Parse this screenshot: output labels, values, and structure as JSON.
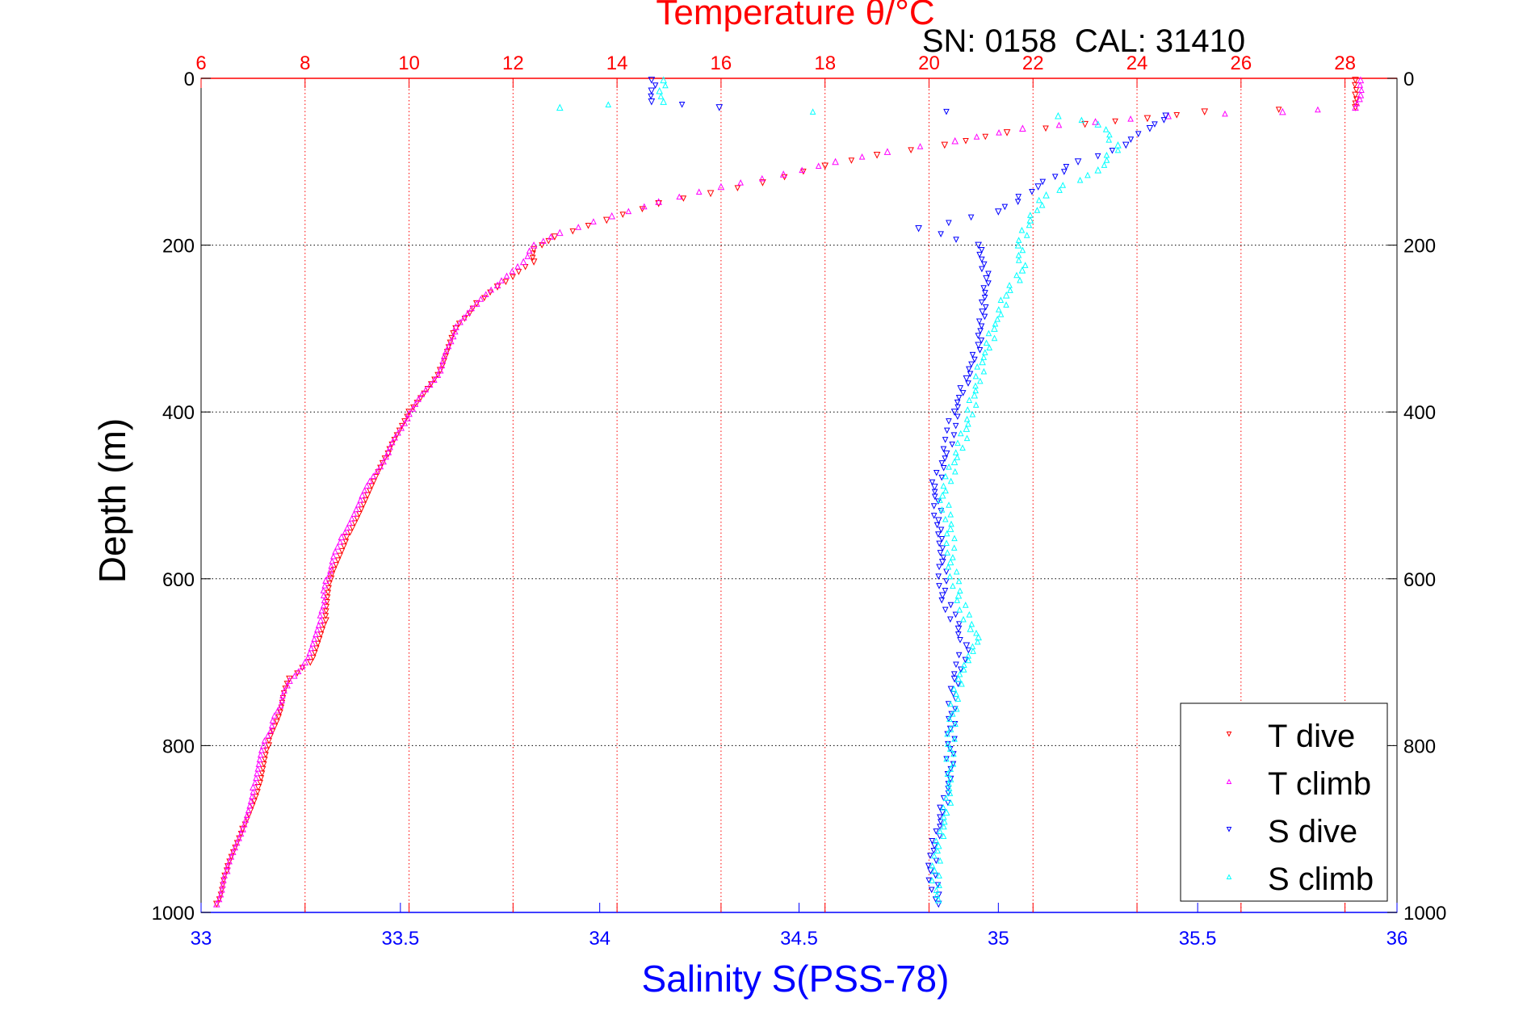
{
  "chart_data": {
    "type": "scatter",
    "title": "Temperature θ/°C",
    "subtitle": "SN: 0158  CAL: 31410",
    "ylabel": "Depth (m)",
    "xlabel": "Salinity S(PSS-78)",
    "ylim": [
      0,
      1000
    ],
    "y_reversed": true,
    "x_top": {
      "label": "Temperature θ/°C",
      "range": [
        6,
        29
      ],
      "ticks": [
        "6",
        "8",
        "10",
        "12",
        "14",
        "16",
        "18",
        "20",
        "22",
        "24",
        "26",
        "28"
      ],
      "color": "#ff0000"
    },
    "x_bottom": {
      "label": "Salinity S(PSS-78)",
      "range": [
        33,
        36
      ],
      "ticks": [
        "33",
        "33.5",
        "34",
        "34.5",
        "35",
        "35.5",
        "36"
      ],
      "color": "#0000ff"
    },
    "y_ticks": [
      "0",
      "200",
      "400",
      "600",
      "800",
      "1000"
    ],
    "grid": true,
    "legend": {
      "placement": "bottom-right",
      "entries": [
        "T dive",
        "T climb",
        "S dive",
        "S climb"
      ]
    },
    "series": [
      {
        "name": "T dive",
        "axis": "temperature",
        "color": "#ff0000",
        "marker": "triangle-down",
        "points": [
          [
            28.2,
            2
          ],
          [
            28.2,
            20
          ],
          [
            28.2,
            35
          ],
          [
            25.3,
            40
          ],
          [
            24.2,
            48
          ],
          [
            23,
            55
          ],
          [
            21.5,
            65
          ],
          [
            20.3,
            80
          ],
          [
            19.0,
            92
          ],
          [
            18.0,
            105
          ],
          [
            16.8,
            125
          ],
          [
            15.8,
            138
          ],
          [
            14.8,
            150
          ],
          [
            13.8,
            170
          ],
          [
            12.8,
            190
          ],
          [
            12.4,
            205
          ],
          [
            12.4,
            220
          ],
          [
            11.7,
            250
          ],
          [
            11.3,
            270
          ],
          [
            10.9,
            300
          ],
          [
            10.6,
            350
          ],
          [
            10.0,
            400
          ],
          [
            9.6,
            450
          ],
          [
            9.2,
            500
          ],
          [
            8.8,
            550
          ],
          [
            8.5,
            600
          ],
          [
            8.4,
            650
          ],
          [
            8.1,
            700
          ],
          [
            7.7,
            720
          ],
          [
            7.3,
            800
          ],
          [
            7.1,
            850
          ],
          [
            6.8,
            900
          ],
          [
            6.5,
            950
          ],
          [
            6.3,
            990
          ]
        ]
      },
      {
        "name": "T climb",
        "axis": "temperature",
        "color": "#ff00ff",
        "marker": "triangle-up",
        "points": [
          [
            28.3,
            2
          ],
          [
            28.3,
            20
          ],
          [
            28.2,
            35
          ],
          [
            26.8,
            40
          ],
          [
            24.6,
            45
          ],
          [
            23.2,
            52
          ],
          [
            21.8,
            60
          ],
          [
            20.5,
            75
          ],
          [
            19.2,
            88
          ],
          [
            18.2,
            100
          ],
          [
            17.2,
            115
          ],
          [
            16,
            130
          ],
          [
            14.8,
            148
          ],
          [
            13.9,
            165
          ],
          [
            12.9,
            185
          ],
          [
            12.4,
            200
          ],
          [
            12.2,
            220
          ],
          [
            11.7,
            248
          ],
          [
            11.3,
            270
          ],
          [
            10.9,
            298
          ],
          [
            10.6,
            350
          ],
          [
            10.0,
            402
          ],
          [
            9.6,
            448
          ],
          [
            9.1,
            500
          ],
          [
            8.7,
            550
          ],
          [
            8.4,
            602
          ],
          [
            8.3,
            650
          ],
          [
            8.0,
            700
          ],
          [
            7.7,
            722
          ],
          [
            7.2,
            800
          ],
          [
            7.0,
            850
          ],
          [
            6.8,
            900
          ],
          [
            6.5,
            950
          ],
          [
            6.3,
            990
          ]
        ]
      },
      {
        "name": "S dive",
        "axis": "salinity",
        "color": "#0000ff",
        "marker": "triangle-down",
        "points": [
          [
            34.13,
            2
          ],
          [
            34.13,
            15
          ],
          [
            34.13,
            28
          ],
          [
            34.3,
            35
          ],
          [
            35.42,
            45
          ],
          [
            35.38,
            60
          ],
          [
            35.32,
            80
          ],
          [
            35.2,
            100
          ],
          [
            35.1,
            130
          ],
          [
            35.0,
            160
          ],
          [
            34.8,
            180
          ],
          [
            34.95,
            200
          ],
          [
            34.97,
            240
          ],
          [
            34.96,
            280
          ],
          [
            34.95,
            320
          ],
          [
            34.92,
            360
          ],
          [
            34.89,
            400
          ],
          [
            34.87,
            450
          ],
          [
            34.84,
            490
          ],
          [
            34.85,
            530
          ],
          [
            34.86,
            580
          ],
          [
            34.86,
            620
          ],
          [
            34.9,
            660
          ],
          [
            34.92,
            680
          ],
          [
            34.89,
            720
          ],
          [
            34.88,
            780
          ],
          [
            34.88,
            840
          ],
          [
            34.86,
            880
          ],
          [
            34.84,
            920
          ],
          [
            34.83,
            950
          ],
          [
            34.85,
            990
          ]
        ]
      },
      {
        "name": "S climb",
        "axis": "salinity",
        "color": "#00ffff",
        "marker": "triangle-up",
        "points": [
          [
            34.16,
            2
          ],
          [
            34.15,
            15
          ],
          [
            34.16,
            28
          ],
          [
            33.9,
            35
          ],
          [
            35.15,
            45
          ],
          [
            35.25,
            55
          ],
          [
            35.3,
            80
          ],
          [
            35.25,
            110
          ],
          [
            35.12,
            140
          ],
          [
            35.08,
            170
          ],
          [
            35.05,
            200
          ],
          [
            35.06,
            230
          ],
          [
            35.02,
            260
          ],
          [
            34.99,
            300
          ],
          [
            34.96,
            340
          ],
          [
            34.94,
            380
          ],
          [
            34.92,
            420
          ],
          [
            34.89,
            460
          ],
          [
            34.86,
            500
          ],
          [
            34.88,
            540
          ],
          [
            34.88,
            580
          ],
          [
            34.9,
            620
          ],
          [
            34.93,
            660
          ],
          [
            34.95,
            670
          ],
          [
            34.9,
            720
          ],
          [
            34.88,
            780
          ],
          [
            34.88,
            840
          ],
          [
            34.87,
            880
          ],
          [
            34.85,
            920
          ],
          [
            34.84,
            950
          ],
          [
            34.85,
            985
          ]
        ]
      }
    ]
  }
}
